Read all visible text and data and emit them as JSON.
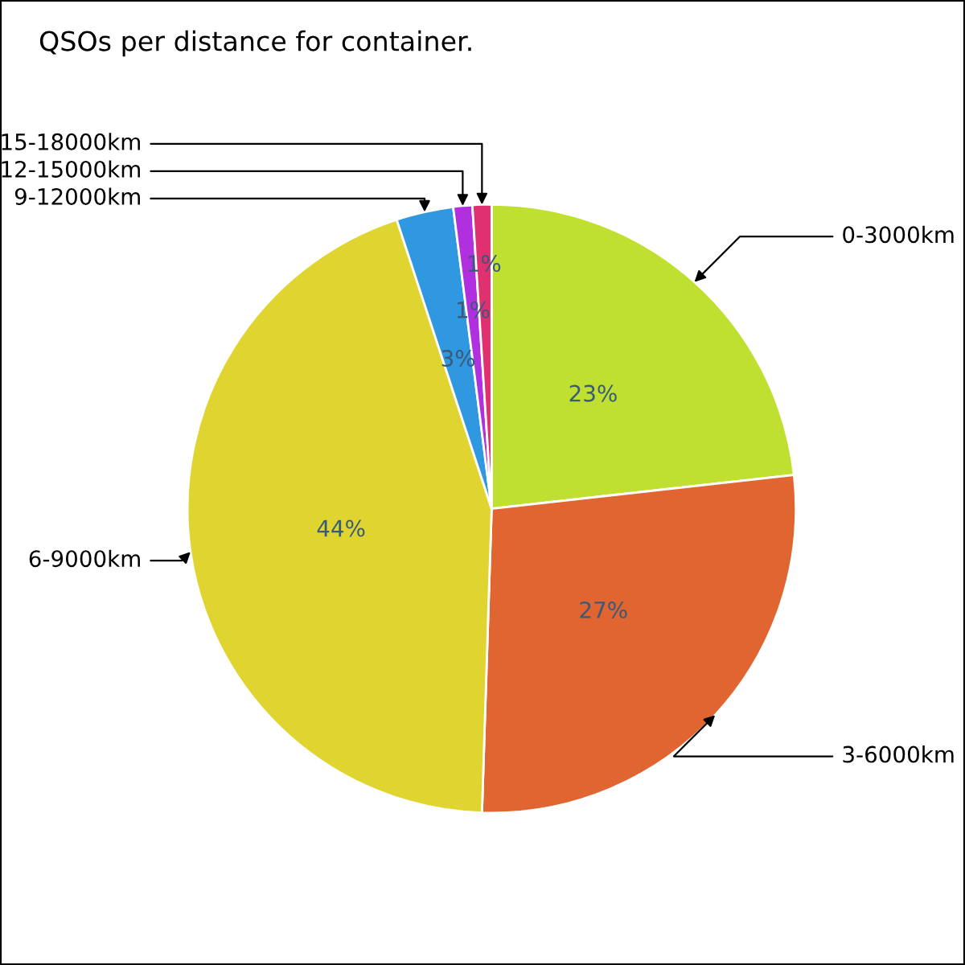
{
  "chart_data": {
    "type": "pie",
    "title": "QSOs per distance for container.",
    "categories": [
      "0-3000km",
      "3-6000km",
      "6-9000km",
      "9-12000km",
      "12-15000km",
      "15-18000km"
    ],
    "values": [
      23,
      27,
      44,
      3,
      1,
      1
    ],
    "colors": [
      "#bfe030",
      "#e06530",
      "#e0d530",
      "#3098e0",
      "#b030e0",
      "#e03070"
    ],
    "value_labels": [
      "23%",
      "27%",
      "44%",
      "3%",
      "1%",
      "1%"
    ],
    "legend": false
  }
}
